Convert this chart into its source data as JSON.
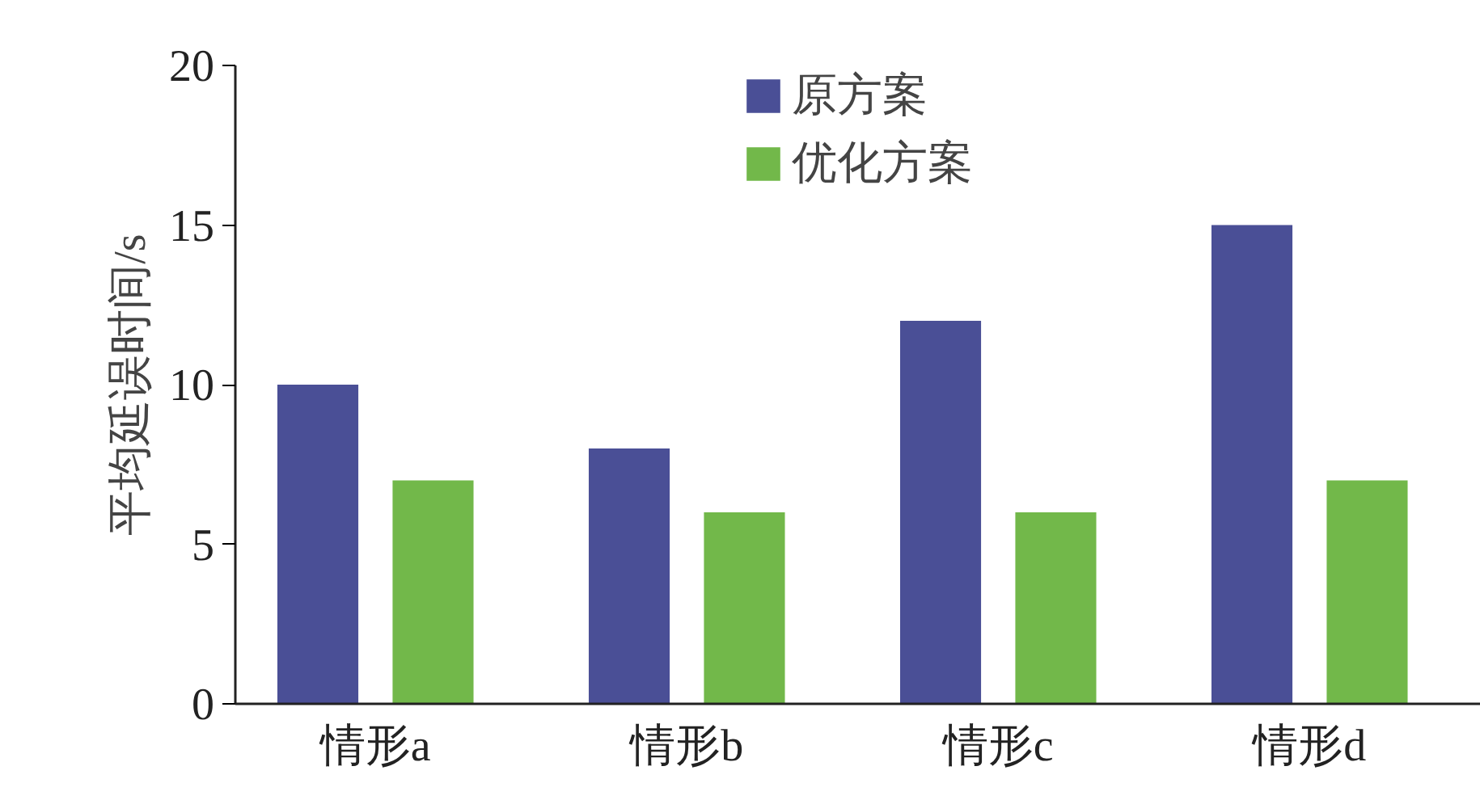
{
  "chart_data": {
    "type": "bar",
    "ylabel": "平均延误时间/s",
    "categories": [
      "情形a",
      "情形b",
      "情形c",
      "情形d"
    ],
    "series": [
      {
        "name": "原方案",
        "color": "#4a4f96",
        "values": [
          10,
          8,
          12,
          15
        ]
      },
      {
        "name": "优化方案",
        "color": "#72b84a",
        "values": [
          7,
          6,
          6,
          7
        ]
      }
    ],
    "ylim": [
      0,
      20
    ],
    "yticks": [
      0,
      5,
      10,
      15,
      20
    ],
    "grid": false,
    "legend": "top"
  }
}
